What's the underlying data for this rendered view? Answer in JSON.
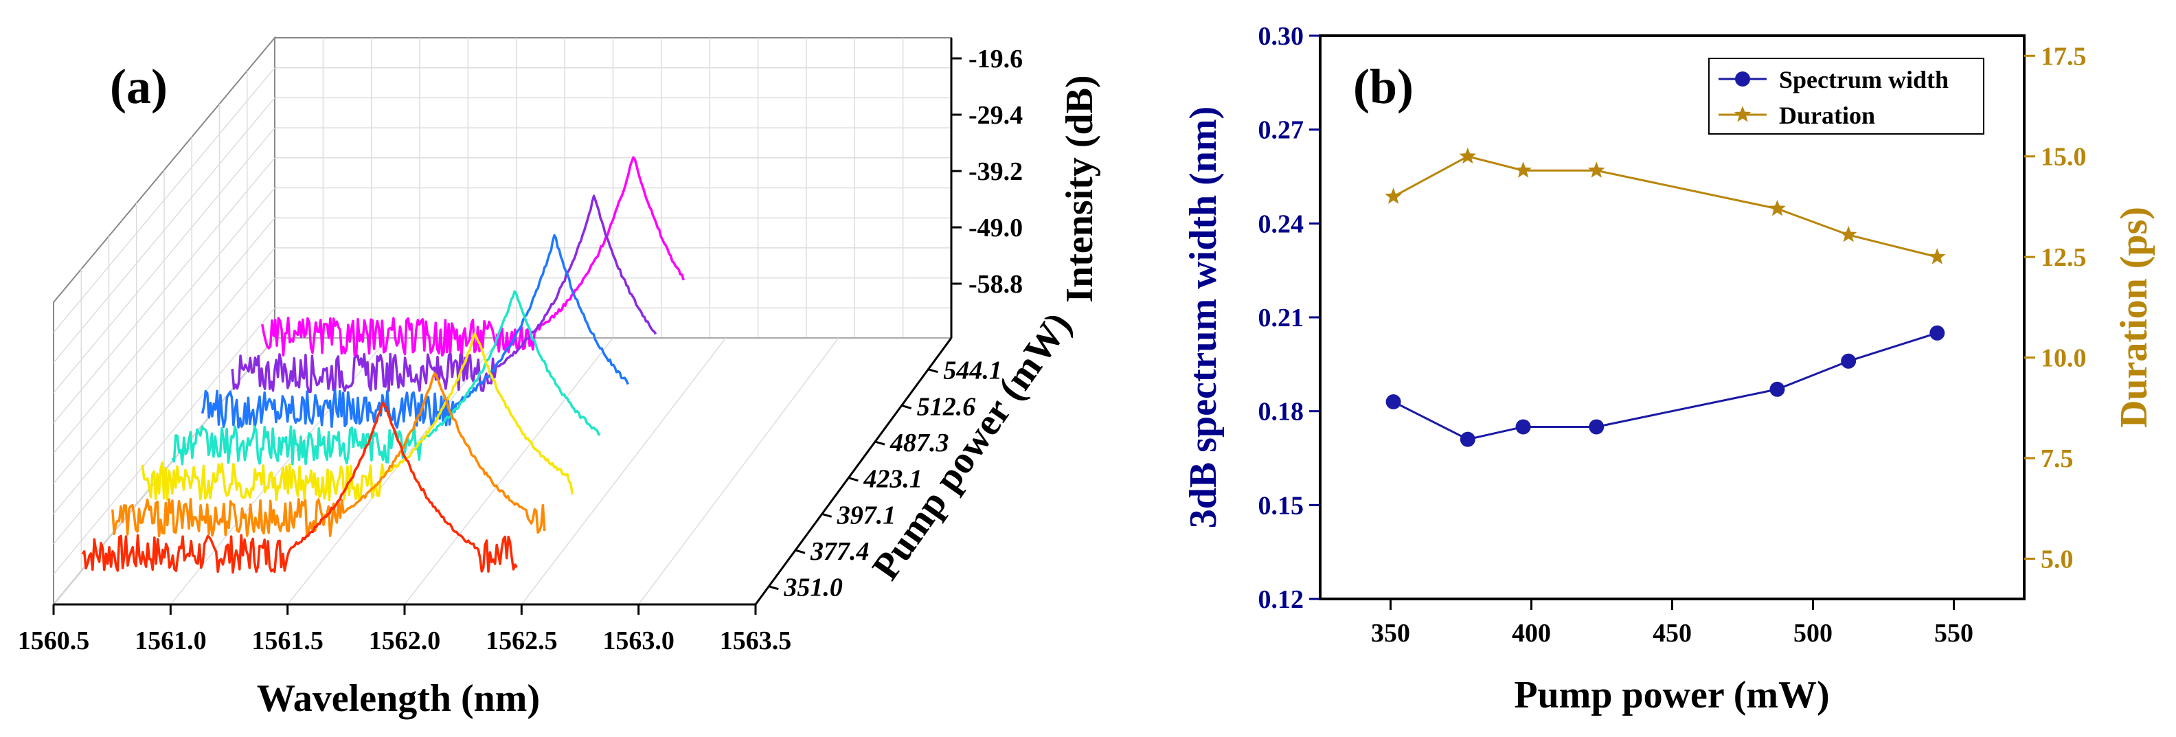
{
  "chart_data": [
    {
      "type": "line",
      "subtype": "3d-waterfall-spectra",
      "panel_label": "(a)",
      "xlabel": "Wavelength (nm)",
      "ylabel": "Pump power (mW)",
      "zlabel": "Intensity (dB)",
      "x_ticks": [
        "1560.5",
        "1561.0",
        "1561.5",
        "1562.0",
        "1562.5",
        "1563.0",
        "1563.5"
      ],
      "xlim": [
        1560.5,
        1563.5
      ],
      "y_ticks": [
        "351.0",
        "377.4",
        "397.1",
        "423.1",
        "487.3",
        "512.6",
        "544.1"
      ],
      "z_ticks": [
        "-19.6",
        "-29.4",
        "-39.2",
        "-49.0",
        "-58.8"
      ],
      "series": [
        {
          "name": "351.0",
          "pump_mW": 351.0,
          "color": "#ff2a00",
          "peak_nm": 1561.85
        },
        {
          "name": "377.4",
          "pump_mW": 377.4,
          "color": "#ff8a00",
          "peak_nm": 1561.95
        },
        {
          "name": "397.1",
          "pump_mW": 397.1,
          "color": "#f7e600",
          "peak_nm": 1562.0
        },
        {
          "name": "423.1",
          "pump_mW": 423.1,
          "color": "#1ee6c8",
          "peak_nm": 1562.05
        },
        {
          "name": "487.3",
          "pump_mW": 487.3,
          "color": "#1f78ff",
          "peak_nm": 1562.1
        },
        {
          "name": "512.6",
          "pump_mW": 512.6,
          "color": "#8a2be2",
          "peak_nm": 1562.15
        },
        {
          "name": "544.1",
          "pump_mW": 544.1,
          "color": "#ff00ff",
          "peak_nm": 1562.2
        }
      ]
    },
    {
      "type": "line",
      "panel_label": "(b)",
      "xlabel": "Pump power (mW)",
      "ylabel": "3dB spectrum width (nm)",
      "y2label": "Duration (ps)",
      "xlim": [
        325,
        575
      ],
      "ylim": [
        0.12,
        0.3
      ],
      "y2lim": [
        4.0,
        18.0
      ],
      "x_ticks": [
        "350",
        "400",
        "450",
        "500",
        "550"
      ],
      "y_ticks": [
        "0.12",
        "0.15",
        "0.18",
        "0.21",
        "0.24",
        "0.27",
        "0.30"
      ],
      "y2_ticks": [
        "5.0",
        "7.5",
        "10.0",
        "12.5",
        "15.0",
        "17.5"
      ],
      "x": [
        351.0,
        377.4,
        397.1,
        423.1,
        487.3,
        512.6,
        544.1
      ],
      "series": [
        {
          "name": "Spectrum width",
          "axis": "left",
          "marker": "circle",
          "color": "#1a1aa6",
          "values": [
            0.183,
            0.171,
            0.175,
            0.175,
            0.187,
            0.196,
            0.205
          ]
        },
        {
          "name": "Duration",
          "axis": "right",
          "marker": "star",
          "color": "#b8860b",
          "values": [
            14.0,
            15.0,
            14.65,
            14.65,
            13.7,
            13.05,
            12.5
          ]
        }
      ],
      "legend_position": "top-right",
      "colors": {
        "left_axis": "#00008b",
        "right_axis": "#b8860b"
      }
    }
  ]
}
